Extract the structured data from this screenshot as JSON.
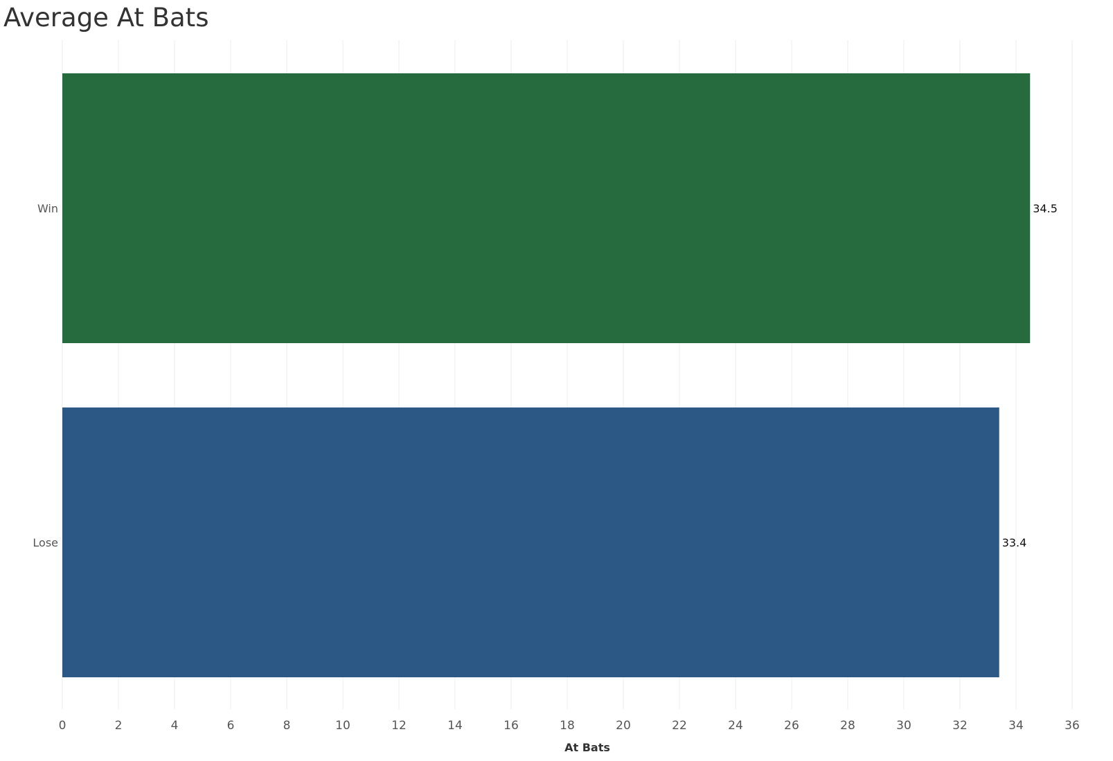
{
  "chart_data": {
    "type": "bar",
    "orientation": "horizontal",
    "title": "Average At Bats",
    "xlabel": "At Bats",
    "ylabel": "",
    "categories": [
      "Win",
      "Lose"
    ],
    "values": [
      34.5,
      33.4
    ],
    "value_labels": [
      "34.5",
      "33.4"
    ],
    "xlim": [
      0,
      36
    ],
    "xticks": [
      0,
      2,
      4,
      6,
      8,
      10,
      12,
      14,
      16,
      18,
      20,
      22,
      24,
      26,
      28,
      30,
      32,
      34,
      36
    ],
    "colors": [
      "#256b3e",
      "#2c5885"
    ],
    "grid": true,
    "legend": "none"
  }
}
